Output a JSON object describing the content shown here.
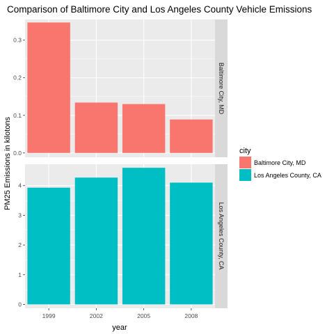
{
  "chart_data": {
    "type": "bar",
    "title": "Comparison of Baltimore City and Los Angeles County Vehicle Emissions",
    "xlabel": "year",
    "ylabel": "PM25 Emissions in kilotons",
    "categories": [
      "1999",
      "2002",
      "2005",
      "2008"
    ],
    "legend": {
      "title": "city",
      "position": "right"
    },
    "grid": true,
    "facets": [
      {
        "name": "Baltimore City, MD",
        "color": "#F8766D",
        "values": [
          0.347,
          0.134,
          0.13,
          0.089
        ],
        "ylim": [
          -0.0115,
          0.355
        ],
        "ticks": [
          0.0,
          0.1,
          0.2,
          0.3
        ],
        "tick_labels": [
          "0.0",
          "0.1",
          "0.2",
          "0.3"
        ]
      },
      {
        "name": "Los Angeles County, CA",
        "color": "#00BFC4",
        "values": [
          3.93,
          4.27,
          4.6,
          4.1
        ],
        "ylim": [
          -0.13,
          4.72
        ],
        "ticks": [
          0,
          1,
          2,
          3,
          4
        ],
        "tick_labels": [
          "0",
          "1",
          "2",
          "3",
          "4"
        ]
      }
    ]
  },
  "colors": {
    "panel_background": "#EBEBEB",
    "grid_major": "#FFFFFF",
    "strip_background": "#D9D9D9"
  }
}
